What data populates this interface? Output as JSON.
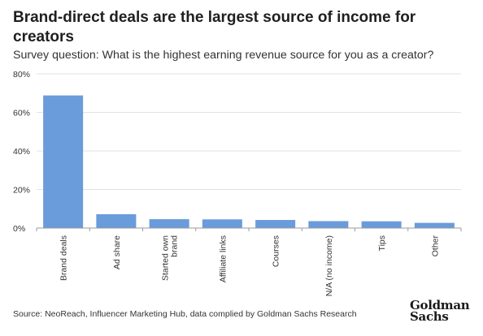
{
  "title": "Brand-direct deals are the largest source of income for creators",
  "subtitle": "Survey question: What is the highest earning revenue source for you as a creator?",
  "source": "Source: NeoReach, Influencer Marketing Hub, data complied by Goldman Sachs Research",
  "logo": {
    "line1": "Goldman",
    "line2": "Sachs"
  },
  "colors": {
    "bar": "#6a9bdb",
    "grid": "#e2e2e2",
    "axis": "#9a9a9a",
    "text": "#333333"
  },
  "chart_data": {
    "type": "bar",
    "categories": [
      [
        "Brand deals"
      ],
      [
        "Ad share"
      ],
      [
        "Started own",
        "brand"
      ],
      [
        "Affiliate links"
      ],
      [
        "Courses"
      ],
      [
        "N/A (no income)"
      ],
      [
        "Tips"
      ],
      [
        "Other"
      ]
    ],
    "values": [
      68.8,
      7.2,
      4.6,
      4.5,
      4.2,
      3.6,
      3.5,
      2.7
    ],
    "unit": "%",
    "ylim": [
      0,
      80
    ],
    "yticks": [
      0,
      20,
      40,
      60,
      80
    ],
    "ytick_labels": [
      "0%",
      "20%",
      "40%",
      "60%",
      "80%"
    ],
    "xlabel": "",
    "ylabel": "",
    "grid": true,
    "legend": "none"
  }
}
